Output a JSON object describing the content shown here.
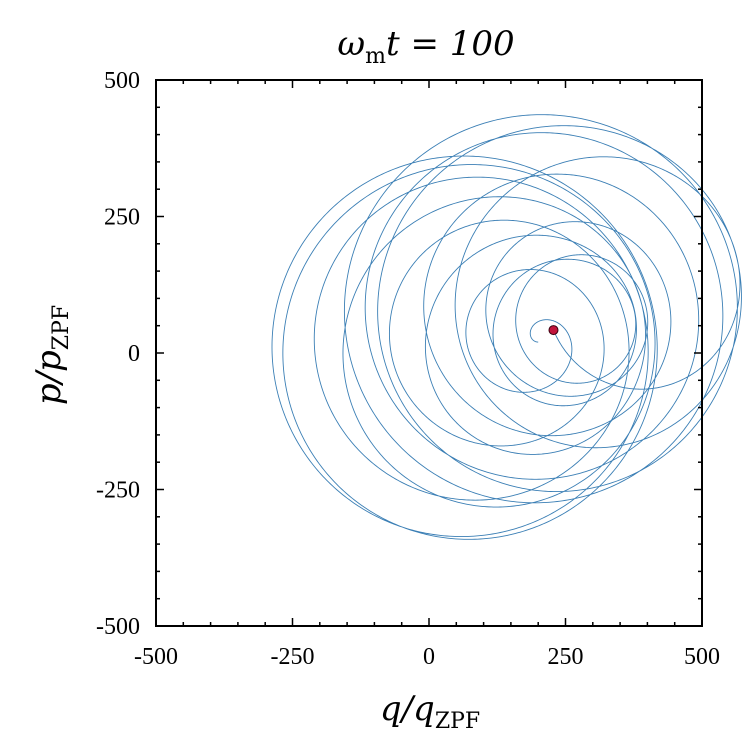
{
  "chart_data": {
    "type": "line",
    "title": {
      "omega": "ω",
      "omega_sub": "m",
      "rest": "t = 100"
    },
    "xlabel": {
      "main": "q/q",
      "sub": "ZPF"
    },
    "ylabel": {
      "main": "p/p",
      "sub": "ZPF"
    },
    "xlim": [
      -500,
      500
    ],
    "ylim": [
      -500,
      500
    ],
    "xticks": [
      -500,
      -250,
      0,
      250,
      500
    ],
    "yticks": [
      -500,
      -250,
      0,
      250,
      500
    ],
    "xtick_labels": [
      "-500",
      "-250",
      "0",
      "250",
      "500"
    ],
    "ytick_labels": [
      "-500",
      "-250",
      "0",
      "250",
      "500"
    ],
    "minor_tick_step": 50,
    "series": [
      {
        "name": "trajectory",
        "color": "#3b7fb5",
        "model": "rotating-spiral",
        "outer_center": [
          45,
          -2
        ],
        "outer_radius": 355,
        "inner_center": [
          200,
          20
        ],
        "inner_radius": 112,
        "t_end": 100,
        "start": [
          0,
          0
        ]
      }
    ],
    "marker": {
      "name": "current-state",
      "x": 228,
      "y": 42,
      "color": "#c0143c"
    }
  }
}
